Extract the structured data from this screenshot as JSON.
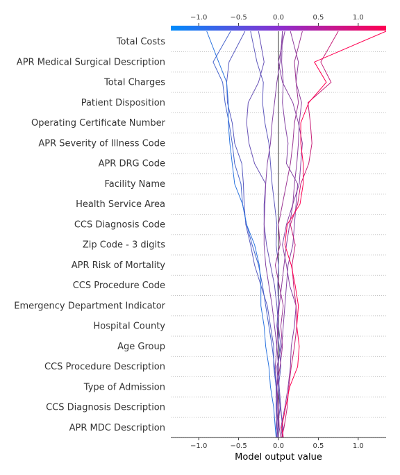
{
  "chart_data": {
    "type": "line",
    "title": "",
    "xlabel": "Model output value",
    "ylabel": "",
    "xlim": [
      -1.35,
      1.35
    ],
    "xticks": [
      -1.0,
      -0.5,
      0.0,
      0.5,
      1.0
    ],
    "xtick_labels": [
      "−1.0",
      "−0.5",
      "0.0",
      "0.5",
      "1.0"
    ],
    "base_value": 0.0,
    "colormap": [
      "#008bfb",
      "#ff0051"
    ],
    "features": [
      "Total Costs",
      "APR Medical Surgical Description",
      "Total Charges",
      "Patient Disposition",
      "Operating Certificate Number",
      "APR Severity of Illness Code",
      "APR DRG Code",
      "Facility Name",
      "Health Service Area",
      "CCS Diagnosis Code",
      "Zip Code - 3 digits",
      "APR Risk of Mortality",
      "CCS Procedure Code",
      "Emergency Department Indicator",
      "Hospital County",
      "Age Group",
      "CCS Procedure Description",
      "Type of Admission",
      "CCS Diagnosis Description",
      "APR MDC Description"
    ],
    "series": [
      {
        "values": [
          0.05,
          0.06,
          0.02,
          0.0,
          -0.02,
          0.04,
          0.06,
          0.08,
          0.1,
          0.12,
          0.18,
          0.2,
          0.22,
          0.24,
          0.1,
          0.12,
          0.08,
          0.05,
          0.06,
          0.04,
          0.05
        ]
      },
      {
        "values": [
          0.0,
          -0.01,
          0.02,
          0.0,
          0.03,
          0.01,
          -0.02,
          0.0,
          -0.01,
          0.0,
          -0.03,
          -0.02,
          -0.05,
          -0.08,
          -0.1,
          -0.12,
          -0.17,
          -0.2,
          -0.19,
          -0.27,
          -0.35
        ]
      },
      {
        "values": [
          -0.01,
          0.0,
          -0.03,
          -0.03,
          -0.06,
          -0.06,
          -0.1,
          -0.14,
          -0.22,
          -0.3,
          -0.35,
          -0.41,
          -0.43,
          -0.44,
          -0.46,
          -0.55,
          -0.58,
          -0.64,
          -0.65,
          -0.62,
          -0.42
        ]
      },
      {
        "values": [
          -0.02,
          -0.03,
          -0.02,
          -0.03,
          -0.05,
          -0.08,
          -0.12,
          -0.16,
          -0.2,
          -0.25,
          -0.33,
          -0.4,
          -0.45,
          -0.47,
          -0.55,
          -0.58,
          -0.62,
          -0.67,
          -0.7,
          -0.82,
          -0.6
        ]
      },
      {
        "values": [
          -0.03,
          -0.04,
          -0.06,
          -0.1,
          -0.12,
          -0.16,
          -0.18,
          -0.22,
          -0.22,
          -0.24,
          -0.3,
          -0.4,
          -0.45,
          -0.55,
          -0.58,
          -0.61,
          -0.63,
          -0.63,
          -0.65,
          -0.75,
          -0.9
        ]
      },
      {
        "values": [
          0.0,
          -0.02,
          -0.03,
          -0.02,
          -0.04,
          -0.02,
          -0.01,
          0.01,
          0.04,
          0.07,
          0.1,
          0.14,
          0.18,
          0.2,
          0.23,
          0.25,
          0.26,
          0.29,
          0.22,
          0.25,
          0.15
        ]
      },
      {
        "values": [
          0.03,
          0.01,
          0.0,
          -0.02,
          0.02,
          0.05,
          0.03,
          0.06,
          0.01,
          -0.04,
          0.02,
          0.0,
          0.05,
          0.1,
          0.15,
          0.18,
          0.2,
          0.25,
          0.22,
          0.2,
          0.3
        ]
      },
      {
        "values": [
          0.06,
          0.05,
          0.03,
          0.01,
          -0.01,
          0.03,
          0.0,
          -0.02,
          -0.05,
          -0.1,
          -0.15,
          -0.18,
          -0.18,
          -0.16,
          -0.3,
          -0.37,
          -0.4,
          -0.38,
          -0.25,
          -0.18,
          -0.25
        ]
      },
      {
        "values": [
          -0.02,
          -0.01,
          -0.01,
          -0.02,
          0.0,
          -0.02,
          -0.05,
          -0.08,
          -0.12,
          -0.16,
          -0.18,
          -0.18,
          -0.17,
          -0.16,
          -0.14,
          -0.1,
          -0.08,
          -0.05,
          -0.02,
          0.02,
          0.05
        ]
      },
      {
        "values": [
          0.05,
          0.03,
          0.08,
          0.12,
          0.15,
          0.16,
          0.2,
          0.22,
          0.14,
          0.1,
          0.05,
          0.1,
          0.18,
          0.26,
          0.28,
          0.3,
          0.25,
          0.18,
          0.05,
          0.0,
          0.08
        ]
      },
      {
        "values": [
          0.04,
          0.07,
          0.11,
          0.13,
          0.16,
          0.2,
          0.23,
          0.22,
          0.19,
          0.17,
          0.21,
          0.15,
          0.24,
          0.28,
          0.38,
          0.42,
          0.4,
          0.37,
          0.66,
          0.53,
          0.75
        ]
      },
      {
        "values": [
          0.06,
          0.04,
          0.09,
          0.14,
          0.24,
          0.26,
          0.23,
          0.25,
          0.21,
          0.16,
          0.08,
          0.11,
          0.27,
          0.31,
          0.31,
          0.28,
          0.28,
          0.38,
          0.6,
          0.45,
          1.35
        ]
      }
    ]
  }
}
